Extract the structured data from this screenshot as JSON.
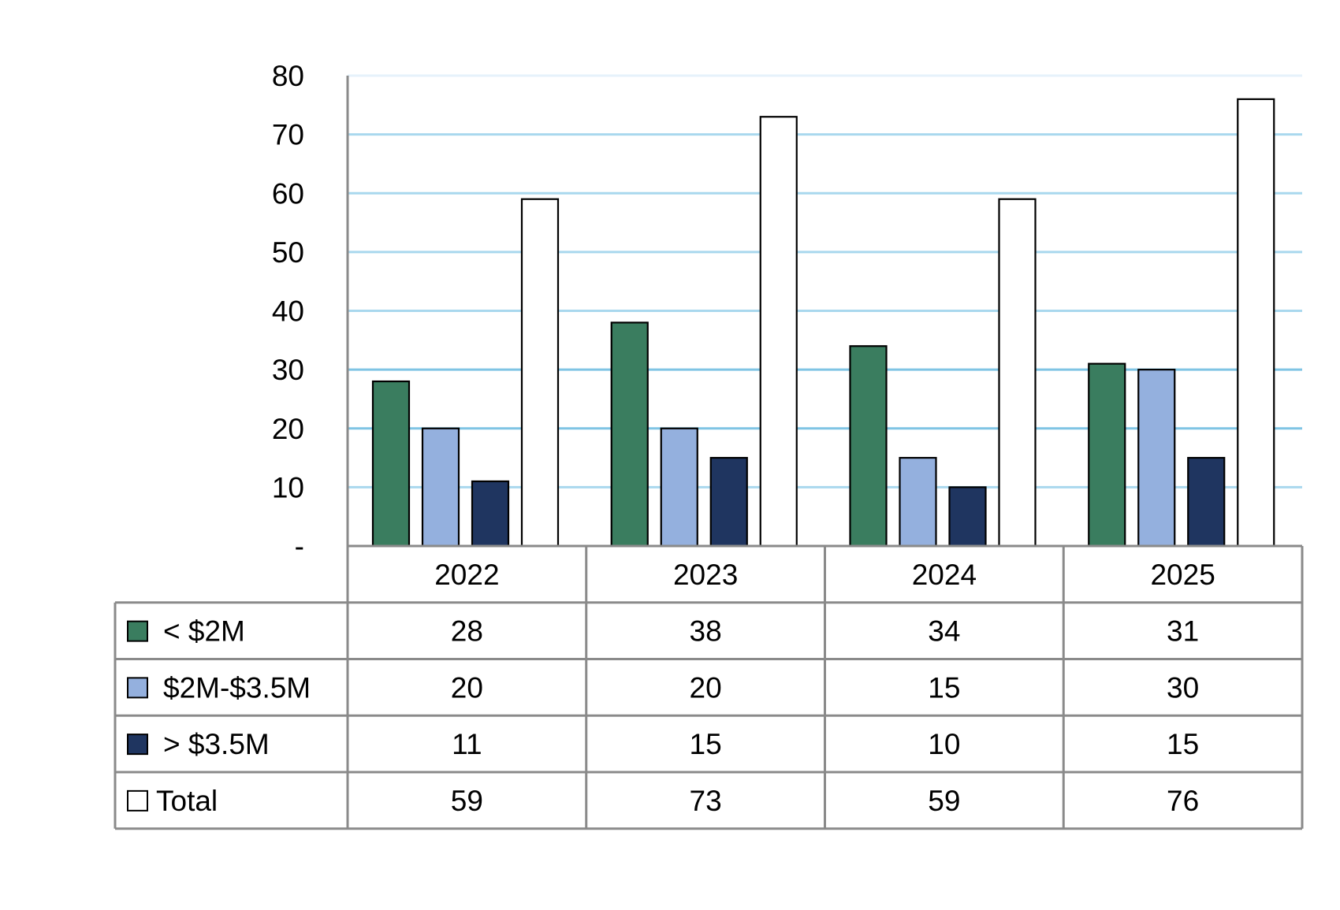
{
  "chart_data": {
    "type": "bar",
    "categories": [
      "2022",
      "2023",
      "2024",
      "2025"
    ],
    "series": [
      {
        "name": "< $2M",
        "values": [
          28,
          38,
          34,
          31
        ],
        "color": "#3a7d5f"
      },
      {
        "name": "$2M-$3.5M",
        "values": [
          20,
          20,
          15,
          30
        ],
        "color": "#94b0de"
      },
      {
        "name": "> $3.5M",
        "values": [
          11,
          15,
          10,
          15
        ],
        "color": "#1f3560"
      },
      {
        "name": "Total",
        "values": [
          59,
          73,
          59,
          76
        ],
        "color": "#ffffff"
      }
    ],
    "ylim": [
      0,
      80
    ],
    "yticks": [
      {
        "value": 0,
        "label": "-"
      },
      {
        "value": 10,
        "label": "10"
      },
      {
        "value": 20,
        "label": "20"
      },
      {
        "value": 30,
        "label": "30"
      },
      {
        "value": 40,
        "label": "40"
      },
      {
        "value": 50,
        "label": "50"
      },
      {
        "value": 60,
        "label": "60"
      },
      {
        "value": 70,
        "label": "70"
      },
      {
        "value": 80,
        "label": "80"
      }
    ],
    "title": "",
    "xlabel": "",
    "ylabel": "",
    "grid": true,
    "legend": "data-table-below"
  }
}
